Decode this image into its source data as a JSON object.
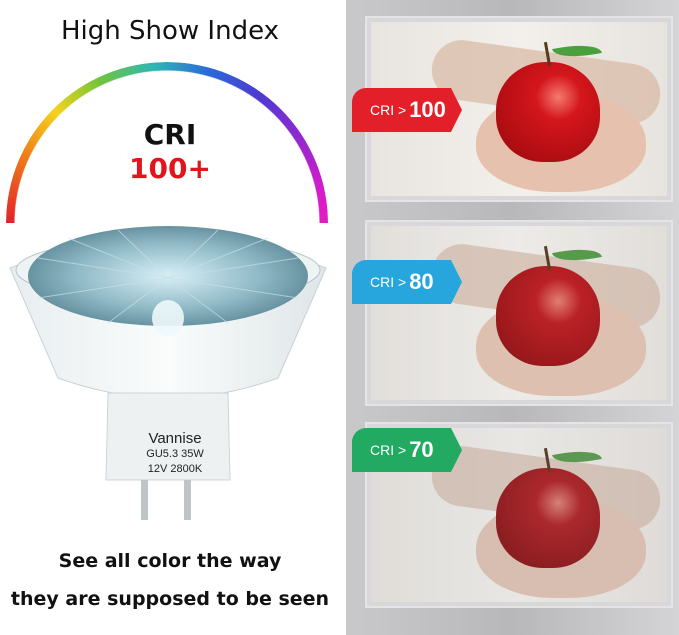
{
  "left": {
    "title": "High Show Index",
    "cri_label": "CRI",
    "cri_value": "100+",
    "bulb_label": {
      "brand": "Vannise",
      "line1": "GU5.3 35W",
      "line2": "12V 2800K"
    },
    "caption_line1": "See all color the way",
    "caption_line2": "they are supposed to be seen"
  },
  "panels": [
    {
      "prefix": "CRI >",
      "value": "100",
      "color": "#e3202a",
      "dark": "#a8141a"
    },
    {
      "prefix": "CRI >",
      "value": "80",
      "color": "#27a6de",
      "dark": "#1a6fa8"
    },
    {
      "prefix": "CRI >",
      "value": "70",
      "color": "#22aa63",
      "dark": "#157a44"
    }
  ]
}
